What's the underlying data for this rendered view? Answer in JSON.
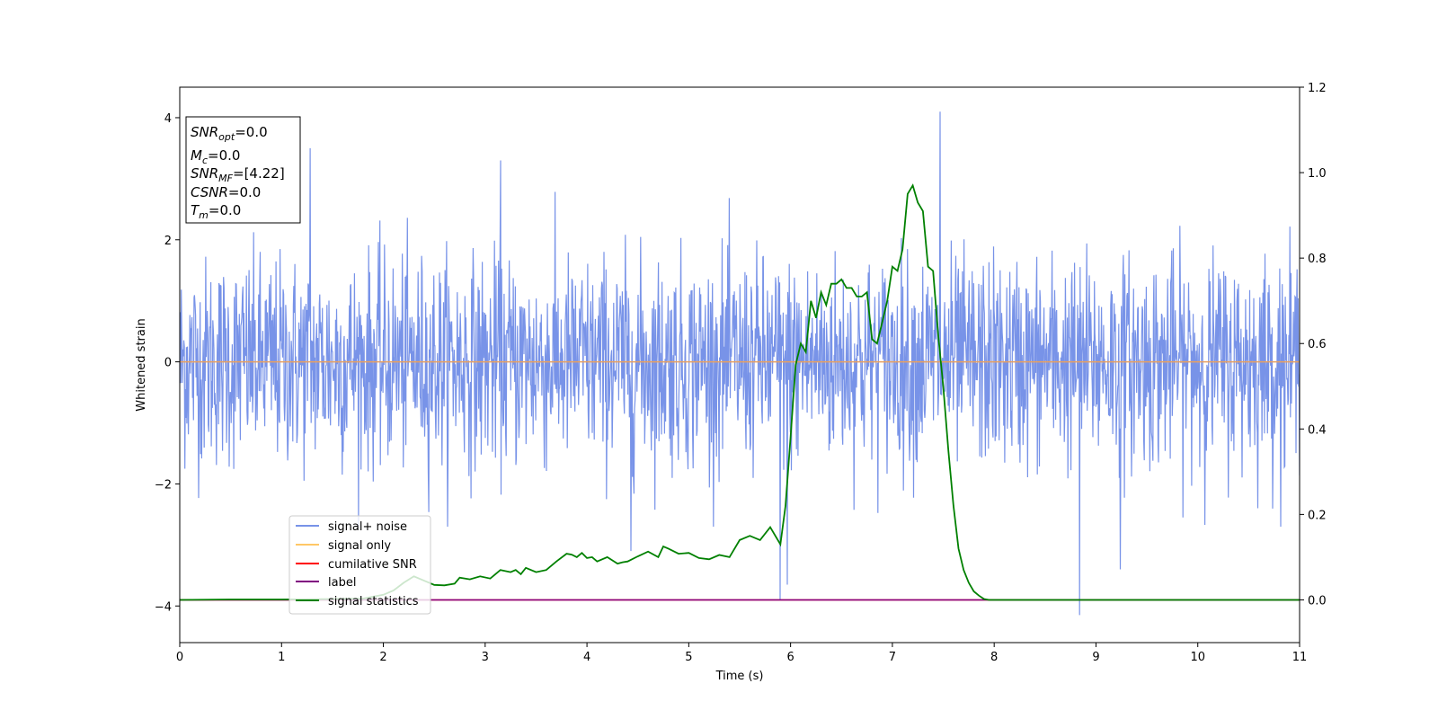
{
  "chart_data": {
    "type": "line",
    "xlabel": "Time (s)",
    "ylabel": "Whitened strain",
    "xlim": [
      0,
      11
    ],
    "ylim_left": [
      -4.6,
      4.5
    ],
    "ylim_right": [
      -0.1,
      1.2
    ],
    "x_ticks": [
      0,
      1,
      2,
      3,
      4,
      5,
      6,
      7,
      8,
      9,
      10,
      11
    ],
    "y_ticks_left": [
      -4,
      -2,
      0,
      2,
      4
    ],
    "y_ticks_right": [
      "0.0",
      "0.2",
      "0.4",
      "0.6",
      "0.8",
      "1.0",
      "1.2"
    ],
    "grid": false,
    "legend_position": "lower-left",
    "colors": {
      "signal_noise": "#7893e8",
      "signal_only": "#ffc766",
      "cumulative_snr": "#ff0000",
      "label": "#800080",
      "signal_statistics": "#008000",
      "zero_line": "#e8a060"
    },
    "series": [
      {
        "name": "signal+ noise",
        "axis": "left",
        "description_of_values": "noise band",
        "envelope_typical": [
          -1.5,
          1.6
        ],
        "peaks": [
          {
            "x": 7.47,
            "y": 4.1
          },
          {
            "x": 1.28,
            "y": 3.5
          },
          {
            "x": 3.15,
            "y": 3.3
          },
          {
            "x": 8.84,
            "y": -4.15
          },
          {
            "x": 5.9,
            "y": -3.9
          },
          {
            "x": 5.97,
            "y": -3.65
          },
          {
            "x": 4.43,
            "y": -3.1
          },
          {
            "x": 9.24,
            "y": -3.4
          }
        ]
      },
      {
        "name": "signal only",
        "axis": "left",
        "x": [
          0,
          11
        ],
        "y": [
          0,
          0
        ]
      },
      {
        "name": "cumilative SNR",
        "axis": "right",
        "x": [
          0,
          11
        ],
        "y": [
          0,
          0
        ]
      },
      {
        "name": "label",
        "axis": "right",
        "x": [
          0,
          11
        ],
        "y": [
          0,
          0
        ]
      },
      {
        "name": "signal statistics",
        "axis": "right",
        "x": [
          0,
          0.5,
          1.0,
          1.5,
          1.8,
          2.0,
          2.1,
          2.2,
          2.3,
          2.4,
          2.5,
          2.6,
          2.7,
          2.75,
          2.85,
          2.95,
          3.05,
          3.15,
          3.25,
          3.3,
          3.35,
          3.4,
          3.5,
          3.6,
          3.7,
          3.8,
          3.85,
          3.9,
          3.95,
          4.0,
          4.05,
          4.1,
          4.2,
          4.3,
          4.35,
          4.4,
          4.5,
          4.6,
          4.7,
          4.75,
          4.8,
          4.9,
          5.0,
          5.1,
          5.2,
          5.3,
          5.4,
          5.5,
          5.6,
          5.7,
          5.8,
          5.9,
          5.95,
          6.0,
          6.05,
          6.1,
          6.15,
          6.2,
          6.25,
          6.3,
          6.35,
          6.4,
          6.45,
          6.5,
          6.55,
          6.6,
          6.65,
          6.7,
          6.75,
          6.8,
          6.85,
          6.9,
          6.95,
          7.0,
          7.05,
          7.1,
          7.15,
          7.2,
          7.25,
          7.3,
          7.35,
          7.4,
          7.45,
          7.5,
          7.55,
          7.6,
          7.65,
          7.7,
          7.75,
          7.8,
          7.85,
          7.9,
          7.95,
          8.0,
          8.05,
          8.1,
          8.2,
          8.3,
          8.4,
          8.5,
          8.6,
          9.0,
          10.0,
          11.0
        ],
        "y": [
          0.0,
          0.001,
          0.001,
          0.002,
          0.003,
          0.012,
          0.022,
          0.04,
          0.055,
          0.045,
          0.035,
          0.034,
          0.038,
          0.052,
          0.048,
          0.055,
          0.05,
          0.07,
          0.065,
          0.07,
          0.06,
          0.075,
          0.065,
          0.07,
          0.09,
          0.108,
          0.106,
          0.1,
          0.11,
          0.098,
          0.1,
          0.09,
          0.1,
          0.085,
          0.088,
          0.09,
          0.102,
          0.113,
          0.1,
          0.125,
          0.12,
          0.108,
          0.11,
          0.098,
          0.095,
          0.105,
          0.1,
          0.14,
          0.15,
          0.14,
          0.17,
          0.13,
          0.22,
          0.38,
          0.55,
          0.6,
          0.58,
          0.7,
          0.66,
          0.72,
          0.69,
          0.74,
          0.74,
          0.75,
          0.73,
          0.73,
          0.71,
          0.71,
          0.72,
          0.61,
          0.6,
          0.65,
          0.7,
          0.78,
          0.77,
          0.82,
          0.95,
          0.97,
          0.93,
          0.91,
          0.78,
          0.77,
          0.62,
          0.5,
          0.35,
          0.22,
          0.12,
          0.07,
          0.04,
          0.02,
          0.01,
          0.002,
          0.0,
          0.0,
          0.0,
          0.0,
          0.0,
          0.0,
          0.0,
          0.0,
          0.0,
          0.0,
          0.0,
          0.0
        ]
      }
    ]
  },
  "info_box": {
    "lines": [
      {
        "var": "SNR",
        "sub": "opt",
        "value": "=0.0"
      },
      {
        "var": "M",
        "sub": "c",
        "value": "=0.0"
      },
      {
        "var": "SNR",
        "sub": "MF",
        "value": "=[4.22]"
      },
      {
        "var": "CSNR",
        "sub": "",
        "value": "=0.0"
      },
      {
        "var": "T",
        "sub": "m",
        "value": "=0.0"
      }
    ]
  },
  "legend": {
    "items": [
      {
        "label": "signal+ noise",
        "color": "#7893e8"
      },
      {
        "label": "signal only",
        "color": "#ffc766"
      },
      {
        "label": "cumilative SNR",
        "color": "#ff0000"
      },
      {
        "label": "label",
        "color": "#800080"
      },
      {
        "label": "signal statistics",
        "color": "#008000"
      }
    ]
  }
}
